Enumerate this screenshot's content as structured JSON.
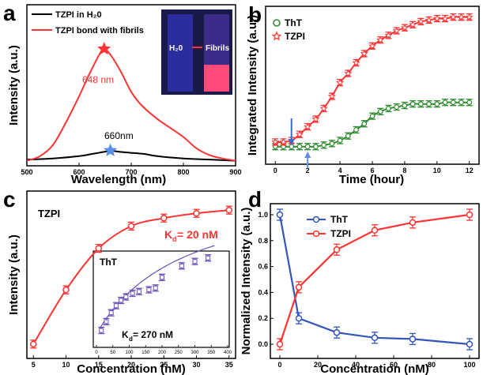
{
  "chart_data": [
    {
      "panel": "a",
      "type": "line",
      "xlabel": "Wavelength (nm)",
      "ylabel": "Intensity (a.u.)",
      "xlim": [
        500,
        900
      ],
      "xticks": [
        500,
        600,
        700,
        800,
        900
      ],
      "legend": [
        "TZPI in H₂0",
        "TZPI bond with fibrils"
      ],
      "annotations": [
        "648 nm",
        "660nm"
      ],
      "inset_labels": [
        "H₂0",
        "Fibrils"
      ],
      "series": [
        {
          "name": "TZPI in H₂0",
          "color": "#000000",
          "x": [
            500,
            550,
            600,
            625,
            650,
            660,
            675,
            700,
            725,
            750,
            800,
            850,
            900
          ],
          "y": [
            2,
            3,
            5,
            7,
            9,
            10,
            9,
            8,
            7,
            5,
            3,
            2,
            1
          ]
        },
        {
          "name": "TZPI bond with fibrils",
          "color": "#ff3333",
          "x": [
            500,
            525,
            550,
            575,
            600,
            620,
            640,
            648,
            660,
            680,
            700,
            720,
            750,
            775,
            800,
            825,
            850,
            875,
            900
          ],
          "y": [
            1,
            5,
            15,
            35,
            58,
            78,
            96,
            100,
            95,
            80,
            62,
            50,
            38,
            30,
            22,
            12,
            6,
            3,
            1
          ]
        }
      ]
    },
    {
      "panel": "b",
      "type": "scatter",
      "xlabel": "Time (hour)",
      "ylabel": "Integrated Intensity (a.u.)",
      "xlim": [
        0,
        12
      ],
      "xticks": [
        0,
        2,
        4,
        6,
        8,
        10,
        12
      ],
      "arrow_marks": [
        1,
        2
      ],
      "series": [
        {
          "name": "ThT",
          "color": "#2e8b2e",
          "x": [
            0,
            0.5,
            1,
            1.5,
            2,
            2.5,
            3,
            3.5,
            4,
            4.5,
            5,
            5.5,
            6,
            6.5,
            7,
            7.5,
            8,
            8.5,
            9,
            9.5,
            10,
            10.5,
            11,
            11.5,
            12
          ],
          "y": [
            10,
            10,
            10,
            10,
            10,
            10,
            11,
            12,
            14,
            17,
            21,
            25,
            30,
            33,
            35,
            36,
            37,
            38,
            38,
            38,
            38,
            39,
            39,
            39,
            39
          ]
        },
        {
          "name": "TZPI",
          "color": "#ff3333",
          "x": [
            0,
            0.5,
            1,
            1.5,
            2,
            2.5,
            3,
            3.5,
            4,
            4.5,
            5,
            5.5,
            6,
            6.5,
            7,
            7.5,
            8,
            8.5,
            9,
            9.5,
            10,
            10.5,
            11,
            11.5,
            12
          ],
          "y": [
            13,
            13,
            14,
            18,
            23,
            28,
            35,
            43,
            52,
            58,
            65,
            71,
            76,
            80,
            83,
            86,
            88,
            90,
            92,
            93,
            94,
            94,
            95,
            95,
            95
          ]
        }
      ]
    },
    {
      "panel": "c",
      "type": "scatter",
      "xlabel": "Concentration (nM)",
      "ylabel": "Intensity (a.u.)",
      "xlim": [
        4,
        36
      ],
      "xticks": [
        5,
        10,
        15,
        20,
        25,
        30,
        35
      ],
      "series_label": "TZPI",
      "kd_main": "K",
      "kd_main_sub": "d",
      "kd_main_value": "= 20 nM",
      "series": [
        {
          "name": "TZPI",
          "color": "#ff3333",
          "x": [
            5,
            10,
            15,
            20,
            25,
            30,
            35
          ],
          "y": [
            8,
            42,
            68,
            82,
            87,
            90,
            92
          ]
        }
      ],
      "inset": {
        "label": "ThT",
        "kd": "K",
        "kd_sub": "d",
        "kd_value": "= 270 nM",
        "xlim": [
          0,
          400
        ],
        "xticks": [
          0,
          50,
          100,
          150,
          200,
          250,
          300,
          350,
          400
        ],
        "color": "#6b4fbb",
        "x": [
          15,
          30,
          45,
          60,
          75,
          90,
          110,
          130,
          160,
          180,
          200,
          260,
          300,
          340
        ],
        "y": [
          12,
          22,
          32,
          40,
          46,
          50,
          54,
          56,
          58,
          60,
          72,
          85,
          90,
          94
        ]
      }
    },
    {
      "panel": "d",
      "type": "line",
      "xlabel": "Concentration (nM)",
      "ylabel": "Normalized Intensity (a.u.)",
      "xlim": [
        -5,
        105
      ],
      "ylim": [
        0,
        1.0
      ],
      "xticks": [
        0,
        20,
        40,
        60,
        80,
        100
      ],
      "yticks": [
        "0.0",
        "0.2",
        "0.4",
        "0.6",
        "0.8",
        "1.0"
      ],
      "series": [
        {
          "name": "ThT",
          "color": "#3355bb",
          "x": [
            0,
            10,
            30,
            50,
            70,
            100
          ],
          "y": [
            1.0,
            0.2,
            0.09,
            0.05,
            0.04,
            0.0
          ]
        },
        {
          "name": "TZPI",
          "color": "#ff3333",
          "x": [
            0,
            10,
            30,
            50,
            70,
            100
          ],
          "y": [
            0.0,
            0.44,
            0.73,
            0.88,
            0.94,
            1.0
          ]
        }
      ]
    }
  ],
  "labels": {
    "a": "a",
    "b": "b",
    "c": "c",
    "d": "d"
  }
}
